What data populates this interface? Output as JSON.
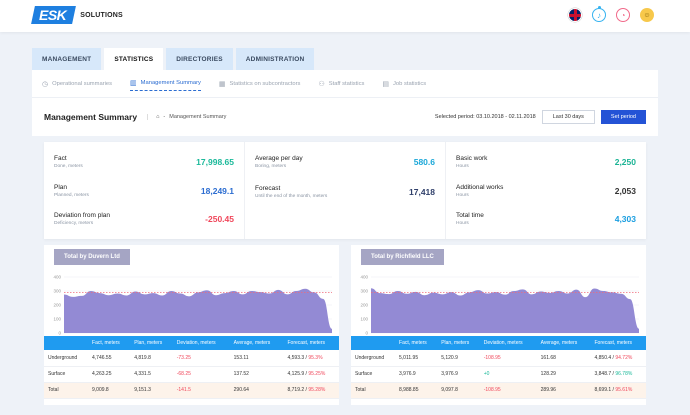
{
  "brand": {
    "logo": "ESK",
    "name": "SOLUTIONS"
  },
  "icons": [
    "uk-flag-icon",
    "bell-icon",
    "alarm-icon",
    "user-avatar-icon"
  ],
  "tabs": [
    "MANAGEMENT",
    "STATISTICS",
    "DIRECTORIES",
    "ADMINISTRATION"
  ],
  "subnav": [
    "Operational summaries",
    "Management Summary",
    "Statistics on subcontractors",
    "Staff statistics",
    "Job statistics"
  ],
  "header": {
    "title": "Management Summary",
    "breadcrumb": "Management Summary",
    "period": "Selected period: 03.10.2018 - 02.11.2018",
    "btn_last30": "Last 30 days",
    "btn_set": "Set period"
  },
  "stats": {
    "fact": {
      "label": "Fact",
      "sub": "Done, meters",
      "value": "17,998.65"
    },
    "plan": {
      "label": "Plan",
      "sub": "Planned, meters",
      "value": "18,249.1"
    },
    "deviation": {
      "label": "Deviation from plan",
      "sub": "Deficiency, meters",
      "value": "-250.45"
    },
    "average": {
      "label": "Average per day",
      "sub": "Boring, meters",
      "value": "580.6"
    },
    "forecast": {
      "label": "Forecast",
      "sub": "Until the end of the month, meters",
      "value": "17,418"
    },
    "basic": {
      "label": "Basic work",
      "sub": "Hours",
      "value": "2,250"
    },
    "additional": {
      "label": "Additional works",
      "sub": "Hours",
      "value": "2,053"
    },
    "total": {
      "label": "Total time",
      "sub": "Hours",
      "value": "4,303"
    }
  },
  "table_headers": [
    "",
    "Fact, meters",
    "Plan, meters",
    "Deviation, meters",
    "Average, meters",
    "Forecast, meters"
  ],
  "panels": [
    {
      "title": "Total by Duvern Ltd",
      "rows": [
        {
          "name": "Underground",
          "fact": "4,746.55",
          "plan": "4,819.8",
          "dev": "-73.25",
          "avg": "153.11",
          "fc": "4,593.3 / ",
          "pct": "95.3%"
        },
        {
          "name": "Surface",
          "fact": "4,263.25",
          "plan": "4,331.5",
          "dev": "-68.25",
          "avg": "137.52",
          "fc": "4,125.9 / ",
          "pct": "95.25%"
        },
        {
          "name": "Total",
          "fact": "9,009.8",
          "plan": "9,151.3",
          "dev": "-141.5",
          "avg": "290.64",
          "fc": "8,719.2 / ",
          "pct": "95.28%"
        }
      ]
    },
    {
      "title": "Total by Richfield LLC",
      "rows": [
        {
          "name": "Underground",
          "fact": "5,011.95",
          "plan": "5,120.9",
          "dev": "-108.95",
          "avg": "161.68",
          "fc": "4,850.4 / ",
          "pct": "94.72%"
        },
        {
          "name": "Surface",
          "fact": "3,976.9",
          "plan": "3,976.9",
          "dev": "+0",
          "avg": "128.29",
          "fc": "3,848.7 / ",
          "pct": "96.78%"
        },
        {
          "name": "Total",
          "fact": "8,988.85",
          "plan": "9,097.8",
          "dev": "-108.95",
          "avg": "289.96",
          "fc": "8,699.1 / ",
          "pct": "95.61%"
        }
      ]
    }
  ],
  "chart_data": [
    {
      "type": "area",
      "yticks": [
        "400",
        "300",
        "200",
        "100",
        "0"
      ],
      "ylim": [
        0,
        400
      ],
      "reference": 290,
      "values": [
        275,
        258,
        265,
        300,
        285,
        270,
        282,
        268,
        296,
        276,
        285,
        268,
        300,
        282,
        262,
        290,
        305,
        270,
        285,
        300,
        276,
        300,
        292,
        282,
        308,
        276,
        300,
        316,
        290,
        244,
        30
      ]
    },
    {
      "type": "area",
      "yticks": [
        "400",
        "300",
        "200",
        "100",
        "0"
      ],
      "ylim": [
        0,
        400
      ],
      "reference": 290,
      "values": [
        320,
        285,
        278,
        300,
        280,
        294,
        270,
        288,
        276,
        292,
        268,
        290,
        306,
        282,
        292,
        274,
        300,
        312,
        276,
        296,
        286,
        300,
        282,
        310,
        256,
        318,
        300,
        290,
        280,
        242,
        30
      ]
    }
  ]
}
